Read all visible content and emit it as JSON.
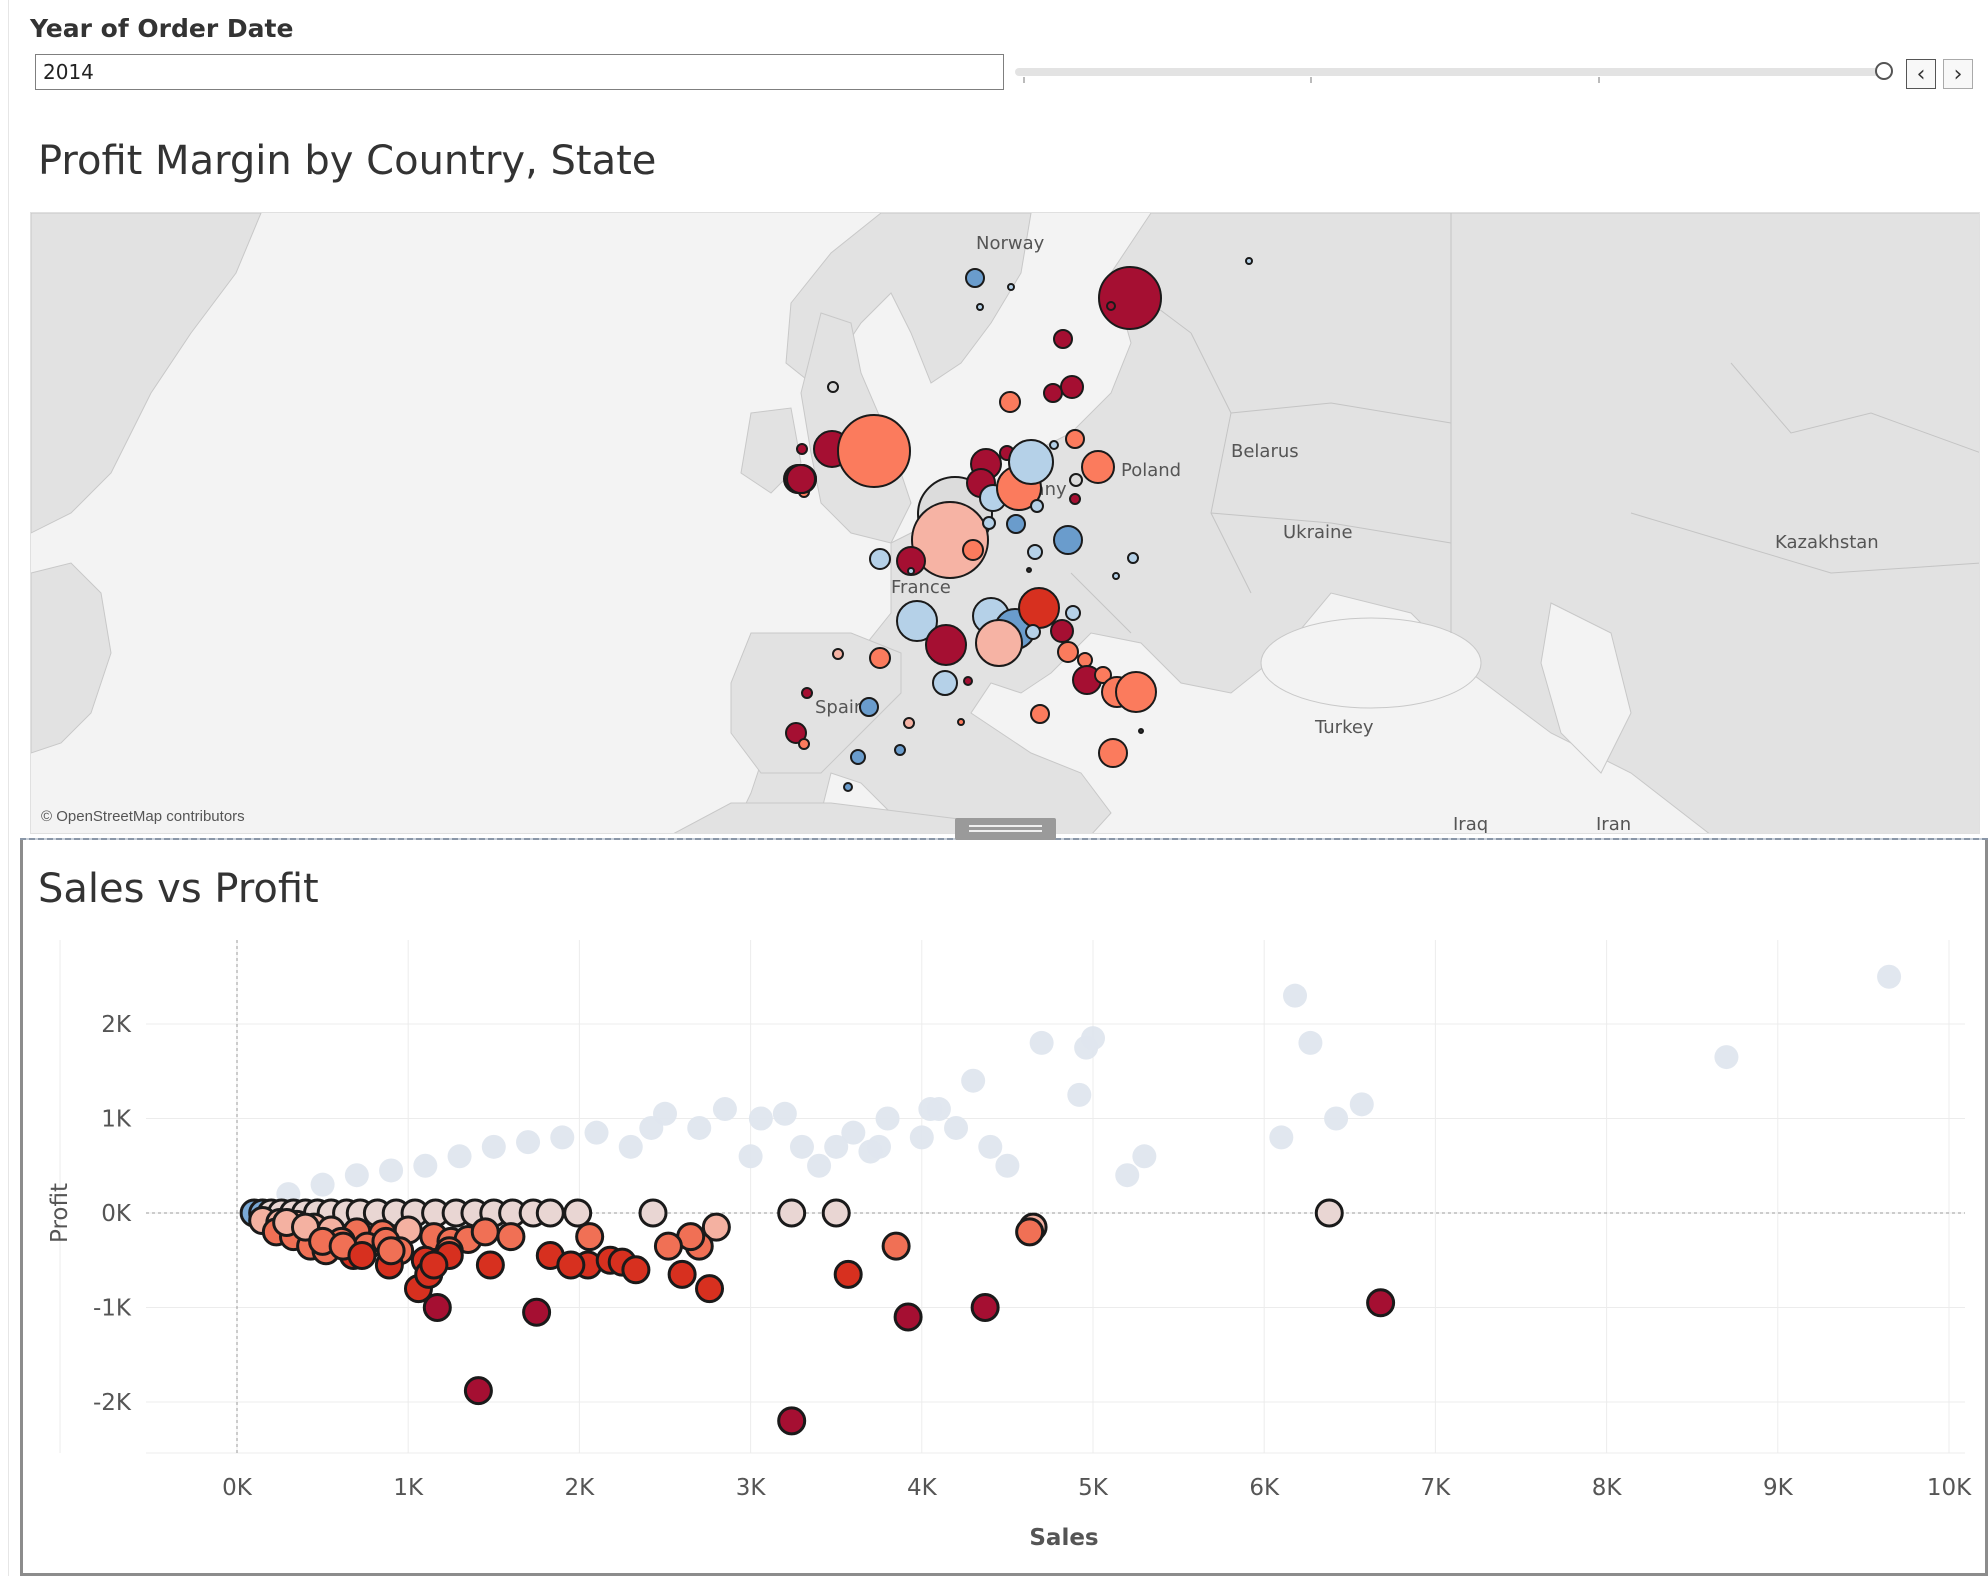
{
  "filter": {
    "title": "Year of Order Date",
    "value": "2014",
    "prev_glyph": "‹",
    "next_glyph": "›"
  },
  "map_sheet": {
    "title": "Profit Margin by Country, State",
    "credit": "© OpenStreetMap contributors",
    "labels": [
      "Norway",
      "Poland",
      "Belarus",
      "Ukraine",
      "Kazakhstan",
      "Turkey",
      "Iraq",
      "Iran",
      "many",
      "Spain",
      "France"
    ],
    "colors": {
      "dark_red": "#a50f32",
      "red": "#d7301f",
      "salmon": "#fb7b5d",
      "light_salmon": "#f6b3a4",
      "light_grey": "#dcdcdc",
      "light_blue": "#b5d1e8",
      "blue": "#6a9ccc"
    }
  },
  "scatter_sheet": {
    "title": "Sales vs Profit",
    "x_axis_title": "Sales",
    "y_axis_title": "Profit",
    "x_ticks": [
      "0K",
      "1K",
      "2K",
      "3K",
      "4K",
      "5K",
      "6K",
      "7K",
      "8K",
      "9K",
      "10K"
    ],
    "y_ticks": [
      "2K",
      "1K",
      "0K",
      "-1K",
      "-2K"
    ],
    "colors": {
      "faded": "#dfe6ee",
      "dark_red": "#a50f32",
      "red": "#d7301f",
      "salmon": "#f07055",
      "light_salmon": "#f4b1a1",
      "pale": "#e9d6d3",
      "blue": "#7aa9d6",
      "outline": "#1a1a1a"
    }
  },
  "chart_data": {
    "type": "scatter",
    "title": "Sales vs Profit",
    "xlabel": "Sales",
    "ylabel": "Profit",
    "xlim": [
      -500,
      10100
    ],
    "ylim": [
      -2500,
      2900
    ],
    "grid": true,
    "series": [
      {
        "name": "",
        "x": [
          6180,
          9650,
          8700,
          4700,
          4960,
          4920,
          6270,
          4300,
          5000,
          4050,
          3800,
          4000,
          3600,
          3200,
          3750,
          2500,
          2850,
          3060,
          2100,
          2420,
          2300,
          1900,
          1700,
          1500,
          1300,
          1100,
          900,
          700,
          500,
          300,
          2700,
          3300,
          3500,
          4400,
          4500,
          5300,
          5200,
          6420,
          6570,
          6100,
          4100,
          4200,
          3700,
          3400,
          3000
        ],
        "y": [
          2300,
          2500,
          1650,
          1800,
          1750,
          1250,
          1800,
          1400,
          1850,
          1100,
          1000,
          800,
          850,
          1050,
          700,
          1050,
          1100,
          1000,
          850,
          900,
          700,
          800,
          750,
          700,
          600,
          500,
          450,
          400,
          300,
          200,
          900,
          700,
          700,
          700,
          500,
          600,
          400,
          1000,
          1150,
          800,
          1100,
          900,
          650,
          500,
          600
        ]
      },
      {
        "name": "",
        "x": [
          100,
          150,
          200,
          260,
          330,
          400,
          470,
          550,
          640,
          720,
          820,
          930,
          1040,
          1160,
          1280,
          1390,
          1500,
          1610,
          1730,
          1830,
          1990,
          2430,
          3240,
          3500,
          4650,
          6380,
          150,
          250,
          350,
          450,
          550,
          700,
          850,
          1000,
          1150,
          1250,
          1350,
          1450,
          1600,
          2050,
          2180,
          2250,
          2330,
          2800,
          2700,
          2650,
          230,
          330,
          430,
          520,
          610,
          680,
          760,
          870,
          950,
          1100,
          1240,
          1480,
          1830,
          1950,
          2060,
          2600,
          2520,
          2760,
          3570,
          3850,
          3920,
          4370,
          6680,
          290,
          400,
          500,
          620,
          730,
          890,
          1060,
          1120,
          1170,
          1240,
          1410,
          3240,
          4630,
          900,
          1150,
          1750
        ],
        "y": [
          0,
          0,
          0,
          0,
          0,
          0,
          0,
          0,
          0,
          0,
          0,
          0,
          0,
          0,
          0,
          0,
          0,
          0,
          0,
          0,
          0,
          0,
          0,
          0,
          -150,
          0,
          -80,
          -100,
          -120,
          -150,
          -180,
          -200,
          -220,
          -180,
          -250,
          -300,
          -280,
          -200,
          -250,
          -550,
          -500,
          -520,
          -600,
          -150,
          -350,
          -250,
          -200,
          -250,
          -350,
          -400,
          -300,
          -450,
          -350,
          -300,
          -400,
          -500,
          -400,
          -550,
          -450,
          -550,
          -250,
          -650,
          -350,
          -800,
          -650,
          -350,
          -1100,
          -1000,
          -950,
          -100,
          -150,
          -300,
          -350,
          -450,
          -550,
          -800,
          -650,
          -1000,
          -450,
          -1880,
          -2200,
          -200,
          -400,
          -550,
          -1050
        ]
      }
    ]
  }
}
